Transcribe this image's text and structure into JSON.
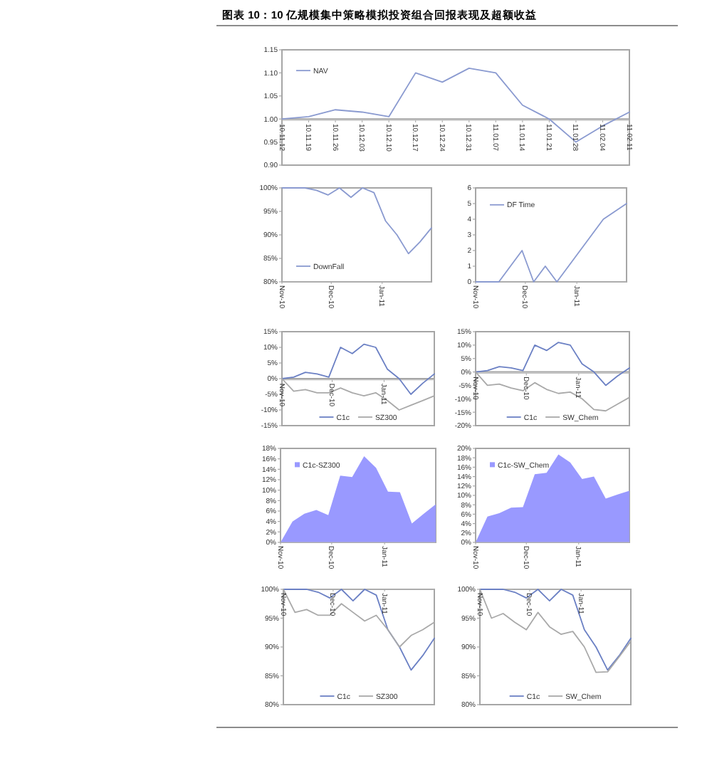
{
  "chart_data": [
    {
      "type": "line",
      "title": "图表 10：10 亿规模集中策略模拟投资组合回报表现及超额收益",
      "categories": [
        "10.11.12",
        "10.11.19",
        "10.11.26",
        "10.12.03",
        "10.12.10",
        "10.12.17",
        "10.12.24",
        "10.12.31",
        "11.01.07",
        "11.01.14",
        "11.01.21",
        "11.01.28",
        "11.02.04",
        "11.02.11"
      ],
      "series": [
        {
          "name": "NAV",
          "color": "#8a9ad0",
          "values": [
            1.0,
            1.005,
            1.02,
            1.015,
            1.005,
            1.1,
            1.08,
            1.11,
            1.1,
            1.03,
            1.0,
            0.95,
            0.985,
            1.015
          ]
        }
      ],
      "ylim": [
        0.9,
        1.15
      ],
      "yticks": [
        {
          "value": 0.9,
          "label": "0.90"
        },
        0.95,
        {
          "value": 1.0,
          "label": "1.00"
        },
        1.05,
        {
          "value": 1.1,
          "label": "1.10"
        },
        1.15
      ],
      "ref_lines": [
        {
          "axis": "y",
          "value": 1.0,
          "color": "#a6a6a6"
        }
      ],
      "legend": "top left"
    },
    {
      "type": "line",
      "x": [
        "2010-11-12",
        "2010-11-19",
        "2010-11-26",
        "2010-12-03",
        "2010-12-10",
        "2010-12-17",
        "2010-12-24",
        "2010-12-31",
        "2011-01-07",
        "2011-01-14",
        "2011-01-21",
        "2011-01-28",
        "2011-02-04",
        "2011-02-11"
      ],
      "xlim": [
        "2010-11-12",
        "2011-02-11"
      ],
      "xticks": [
        {
          "value": "2010-11-12",
          "label": "Nov-10"
        },
        {
          "value": "2010-12-12",
          "label": "Dec-10"
        },
        {
          "value": "2011-01-12",
          "label": "Jan-11"
        }
      ],
      "series": [
        {
          "name": "DownFall",
          "color": "#8a9ad0",
          "values": [
            100,
            100,
            100,
            99.5,
            98.5,
            100,
            98,
            100,
            99,
            93,
            90,
            86,
            88.5,
            91.5
          ]
        }
      ],
      "ylim": [
        80,
        100
      ],
      "yticks": [
        {
          "value": 80,
          "label": "80%"
        },
        {
          "value": 85,
          "label": "85%"
        },
        {
          "value": 90,
          "label": "90%"
        },
        {
          "value": 95,
          "label": "95%"
        },
        {
          "value": 100,
          "label": "100%"
        }
      ],
      "legend": "bottom left"
    },
    {
      "type": "line",
      "x": [
        "2010-11-12",
        "2010-11-19",
        "2010-11-26",
        "2010-12-03",
        "2010-12-10",
        "2010-12-17",
        "2010-12-24",
        "2010-12-31",
        "2011-01-07",
        "2011-01-14",
        "2011-01-21",
        "2011-01-28",
        "2011-02-04",
        "2011-02-11"
      ],
      "xlim": [
        "2010-11-12",
        "2011-02-11"
      ],
      "xticks": [
        {
          "value": "2010-11-12",
          "label": "Nov-10"
        },
        {
          "value": "2010-12-12",
          "label": "Dec-10"
        },
        {
          "value": "2011-01-12",
          "label": "Jan-11"
        }
      ],
      "series": [
        {
          "name": "DF Time",
          "color": "#8a9ad0",
          "values": [
            0,
            0,
            0,
            1,
            2,
            0,
            1,
            0,
            1,
            2,
            3,
            4,
            4.5,
            5
          ]
        }
      ],
      "ylim": [
        0,
        6
      ],
      "yticks": [
        0,
        1,
        2,
        3,
        4,
        5,
        6
      ],
      "legend": "top left"
    },
    {
      "type": "line",
      "x": [
        "2010-11-12",
        "2010-11-19",
        "2010-11-26",
        "2010-12-03",
        "2010-12-10",
        "2010-12-17",
        "2010-12-24",
        "2010-12-31",
        "2011-01-07",
        "2011-01-14",
        "2011-01-21",
        "2011-01-28",
        "2011-02-04",
        "2011-02-11"
      ],
      "xlim": [
        "2010-11-12",
        "2011-02-11"
      ],
      "xticks": [
        {
          "value": "2010-11-12",
          "label": "Nov-10"
        },
        {
          "value": "2010-12-12",
          "label": "Dec-10"
        },
        {
          "value": "2011-01-12",
          "label": "Jan-11"
        }
      ],
      "series": [
        {
          "name": "C1c",
          "color": "#6b80c4",
          "values": [
            0,
            0.5,
            2,
            1.5,
            0.5,
            10,
            8,
            11,
            10,
            3,
            0,
            -5,
            -1.5,
            1.5
          ]
        },
        {
          "name": "SZ300",
          "color": "#a9a9a9",
          "values": [
            0,
            -4,
            -3.5,
            -4.5,
            -4.5,
            -3,
            -4.5,
            -5.5,
            -4.5,
            -7,
            -10,
            -8.5,
            -7,
            -5.5
          ]
        }
      ],
      "ylim": [
        -15,
        15
      ],
      "yticks": [
        {
          "value": -15,
          "label": "-15%"
        },
        {
          "value": -10,
          "label": "-10%"
        },
        {
          "value": -5,
          "label": "-5%"
        },
        {
          "value": 0,
          "label": "0%"
        },
        {
          "value": 5,
          "label": "5%"
        },
        {
          "value": 10,
          "label": "10%"
        },
        {
          "value": 15,
          "label": "15%"
        }
      ],
      "ref_lines": [
        {
          "axis": "y",
          "value": 0,
          "color": "#a6a6a6"
        }
      ],
      "legend": "bottom"
    },
    {
      "type": "line",
      "x": [
        "2010-11-12",
        "2010-11-19",
        "2010-11-26",
        "2010-12-03",
        "2010-12-10",
        "2010-12-17",
        "2010-12-24",
        "2010-12-31",
        "2011-01-07",
        "2011-01-14",
        "2011-01-21",
        "2011-01-28",
        "2011-02-04",
        "2011-02-11"
      ],
      "xlim": [
        "2010-11-12",
        "2011-02-11"
      ],
      "xticks": [
        {
          "value": "2010-11-12",
          "label": "Nov-10"
        },
        {
          "value": "2010-12-12",
          "label": "Dec-10"
        },
        {
          "value": "2011-01-12",
          "label": "Jan-11"
        }
      ],
      "series": [
        {
          "name": "C1c",
          "color": "#6b80c4",
          "values": [
            0,
            0.5,
            2,
            1.5,
            0.5,
            10,
            8,
            11,
            10,
            3,
            0,
            -5,
            -1.5,
            1.5
          ]
        },
        {
          "name": "SW_Chem",
          "color": "#a9a9a9",
          "values": [
            0,
            -5,
            -4.5,
            -6,
            -7,
            -4,
            -6.5,
            -8,
            -7.5,
            -10,
            -14,
            -14.5,
            -12,
            -9.5
          ]
        }
      ],
      "ylim": [
        -20,
        15
      ],
      "yticks": [
        {
          "value": -20,
          "label": "-20%"
        },
        {
          "value": -15,
          "label": "-15%"
        },
        {
          "value": -10,
          "label": "-10%"
        },
        {
          "value": -5,
          "label": "-5%"
        },
        {
          "value": 0,
          "label": "0%"
        },
        {
          "value": 5,
          "label": "5%"
        },
        {
          "value": 10,
          "label": "10%"
        },
        {
          "value": 15,
          "label": "15%"
        }
      ],
      "ref_lines": [
        {
          "axis": "y",
          "value": 0,
          "color": "#a6a6a6"
        }
      ],
      "legend": "bottom"
    },
    {
      "type": "area",
      "x": [
        "2010-11-12",
        "2010-11-19",
        "2010-11-26",
        "2010-12-03",
        "2010-12-10",
        "2010-12-17",
        "2010-12-24",
        "2010-12-31",
        "2011-01-07",
        "2011-01-14",
        "2011-01-21",
        "2011-01-28",
        "2011-02-04",
        "2011-02-11"
      ],
      "xlim": [
        "2010-11-12",
        "2011-02-11"
      ],
      "xticks": [
        {
          "value": "2010-11-12",
          "label": "Nov-10"
        },
        {
          "value": "2010-12-12",
          "label": "Dec-10"
        },
        {
          "value": "2011-01-12",
          "label": "Jan-11"
        }
      ],
      "series": [
        {
          "name": "C1c-SZ300",
          "color": "#9999ff",
          "values": [
            0,
            4,
            5.5,
            6.2,
            5.2,
            12.8,
            12.5,
            16.5,
            14.3,
            9.7,
            9.6,
            3.6,
            5.5,
            7.3
          ]
        }
      ],
      "ylim": [
        0,
        18
      ],
      "yticks": [
        {
          "value": 0,
          "label": "0%"
        },
        {
          "value": 2,
          "label": "2%"
        },
        {
          "value": 4,
          "label": "4%"
        },
        {
          "value": 6,
          "label": "6%"
        },
        {
          "value": 8,
          "label": "8%"
        },
        {
          "value": 10,
          "label": "10%"
        },
        {
          "value": 12,
          "label": "12%"
        },
        {
          "value": 14,
          "label": "14%"
        },
        {
          "value": 16,
          "label": "16%"
        },
        {
          "value": 18,
          "label": "18%"
        }
      ],
      "legend": "top left"
    },
    {
      "type": "area",
      "x": [
        "2010-11-12",
        "2010-11-19",
        "2010-11-26",
        "2010-12-03",
        "2010-12-10",
        "2010-12-17",
        "2010-12-24",
        "2010-12-31",
        "2011-01-07",
        "2011-01-14",
        "2011-01-21",
        "2011-01-28",
        "2011-02-04",
        "2011-02-11"
      ],
      "xlim": [
        "2010-11-12",
        "2011-02-11"
      ],
      "xticks": [
        {
          "value": "2010-11-12",
          "label": "Nov-10"
        },
        {
          "value": "2010-12-12",
          "label": "Dec-10"
        },
        {
          "value": "2011-01-12",
          "label": "Jan-11"
        }
      ],
      "series": [
        {
          "name": "C1c-SW_Chem",
          "color": "#9999ff",
          "values": [
            0,
            5.5,
            6.2,
            7.4,
            7.5,
            14.5,
            14.8,
            18.7,
            17,
            13.5,
            14,
            9.3,
            10.2,
            11
          ]
        }
      ],
      "ylim": [
        0,
        20
      ],
      "yticks": [
        {
          "value": 0,
          "label": "0%"
        },
        {
          "value": 2,
          "label": "2%"
        },
        {
          "value": 4,
          "label": "4%"
        },
        {
          "value": 6,
          "label": "6%"
        },
        {
          "value": 8,
          "label": "8%"
        },
        {
          "value": 10,
          "label": "10%"
        },
        {
          "value": 12,
          "label": "12%"
        },
        {
          "value": 14,
          "label": "14%"
        },
        {
          "value": 16,
          "label": "16%"
        },
        {
          "value": 18,
          "label": "18%"
        },
        {
          "value": 20,
          "label": "20%"
        }
      ],
      "legend": "top left"
    },
    {
      "type": "line",
      "x": [
        "2010-11-12",
        "2010-11-19",
        "2010-11-26",
        "2010-12-03",
        "2010-12-10",
        "2010-12-17",
        "2010-12-24",
        "2010-12-31",
        "2011-01-07",
        "2011-01-14",
        "2011-01-21",
        "2011-01-28",
        "2011-02-04",
        "2011-02-11"
      ],
      "xlim": [
        "2010-11-12",
        "2011-02-11"
      ],
      "xticks": [
        {
          "value": "2010-11-12",
          "label": "Nov-10"
        },
        {
          "value": "2010-12-12",
          "label": "Dec-10"
        },
        {
          "value": "2011-01-12",
          "label": "Jan-11"
        }
      ],
      "series": [
        {
          "name": "C1c",
          "color": "#6b80c4",
          "values": [
            100,
            100,
            100,
            99.5,
            98.5,
            100,
            98,
            100,
            99,
            93,
            90,
            86,
            88.5,
            91.5
          ]
        },
        {
          "name": "SZ300",
          "color": "#a9a9a9",
          "values": [
            100,
            96,
            96.5,
            95.5,
            95.5,
            97.5,
            96,
            94.5,
            95.5,
            93,
            90,
            92,
            93,
            94.3
          ]
        }
      ],
      "ylim": [
        80,
        100
      ],
      "yticks": [
        {
          "value": 80,
          "label": "80%"
        },
        {
          "value": 85,
          "label": "85%"
        },
        {
          "value": 90,
          "label": "90%"
        },
        {
          "value": 95,
          "label": "95%"
        },
        {
          "value": 100,
          "label": "100%"
        }
      ],
      "legend": "bottom"
    },
    {
      "type": "line",
      "x": [
        "2010-11-12",
        "2010-11-19",
        "2010-11-26",
        "2010-12-03",
        "2010-12-10",
        "2010-12-17",
        "2010-12-24",
        "2010-12-31",
        "2011-01-07",
        "2011-01-14",
        "2011-01-21",
        "2011-01-28",
        "2011-02-04",
        "2011-02-11"
      ],
      "xlim": [
        "2010-11-12",
        "2011-02-11"
      ],
      "xticks": [
        {
          "value": "2010-11-12",
          "label": "Nov-10"
        },
        {
          "value": "2010-12-12",
          "label": "Dec-10"
        },
        {
          "value": "2011-01-12",
          "label": "Jan-11"
        }
      ],
      "series": [
        {
          "name": "C1c",
          "color": "#6b80c4",
          "values": [
            100,
            100,
            100,
            99.5,
            98.5,
            100,
            98,
            100,
            99,
            93,
            90,
            86,
            88.5,
            91.5
          ]
        },
        {
          "name": "SW_Chem",
          "color": "#a9a9a9",
          "values": [
            100,
            95,
            95.8,
            94.3,
            93,
            96,
            93.5,
            92.2,
            92.7,
            90,
            85.6,
            85.7,
            88.3,
            91
          ]
        }
      ],
      "ylim": [
        80,
        100
      ],
      "yticks": [
        {
          "value": 80,
          "label": "80%"
        },
        {
          "value": 85,
          "label": "85%"
        },
        {
          "value": 90,
          "label": "90%"
        },
        {
          "value": 95,
          "label": "95%"
        },
        {
          "value": 100,
          "label": "100%"
        }
      ],
      "legend": "bottom"
    }
  ]
}
